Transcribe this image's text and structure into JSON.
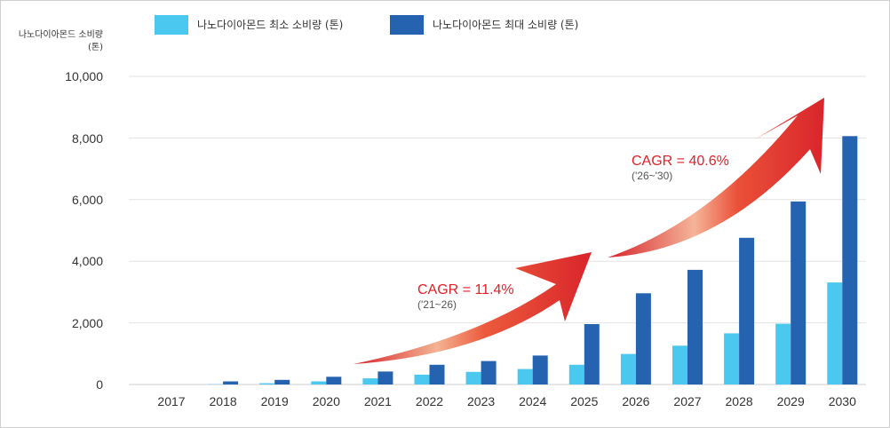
{
  "chart_data": {
    "type": "bar",
    "ylabel_line1": "나노다이아몬드 소비량",
    "ylabel_line2": "(톤)",
    "ylim": [
      0,
      10000
    ],
    "yticks": [
      "10,000",
      "8,000",
      "6,000",
      "4,000",
      "2,000",
      "0"
    ],
    "ytick_values": [
      10000,
      8000,
      6000,
      4000,
      2000,
      0
    ],
    "categories": [
      "2017",
      "2018",
      "2019",
      "2020",
      "2021",
      "2022",
      "2023",
      "2024",
      "2025",
      "2026",
      "2027",
      "2028",
      "2029",
      "2030"
    ],
    "series": [
      {
        "name": "나노다이아몬드 최소 소비량 (톤)",
        "color": "#4bc8ef",
        "values": [
          0,
          10,
          40,
          100,
          200,
          320,
          410,
          500,
          640,
          990,
          1260,
          1660,
          1970,
          3310
        ]
      },
      {
        "name": "나노다이아몬드 최대 소비량 (톤)",
        "color": "#2562b0",
        "values": [
          0,
          100,
          150,
          250,
          420,
          640,
          760,
          940,
          1960,
          2960,
          3720,
          4760,
          5940,
          8060
        ]
      }
    ],
    "grid": true,
    "legend_position": "top-left",
    "annotations": [
      {
        "label": "CAGR = 11.4%",
        "sub": "('21~26)"
      },
      {
        "label": "CAGR = 40.6%",
        "sub": "('26~'30)"
      }
    ]
  }
}
